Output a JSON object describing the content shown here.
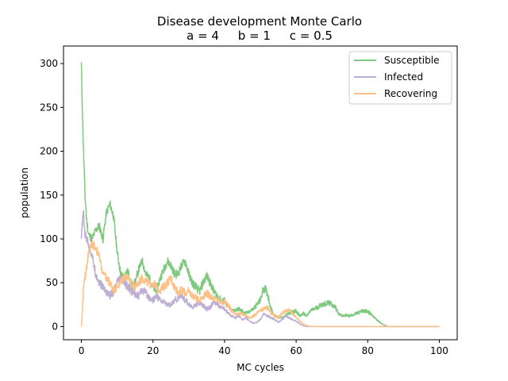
{
  "chart_data": {
    "type": "line",
    "title": "Disease development Monte Carlo",
    "subtitle": "a = 4     b = 1     c = 0.5",
    "xlabel": "MC cycles",
    "ylabel": "population",
    "xlim": [
      -5,
      105
    ],
    "ylim": [
      -15,
      320
    ],
    "xticks": [
      0,
      20,
      40,
      60,
      80,
      100
    ],
    "yticks": [
      0,
      50,
      100,
      150,
      200,
      250,
      300
    ],
    "grid": false,
    "legend_position": "top-right",
    "series": [
      {
        "name": "Susceptible",
        "color": "#7fc97f",
        "points": [
          [
            0,
            300
          ],
          [
            0.3,
            240
          ],
          [
            0.6,
            200
          ],
          [
            1,
            150
          ],
          [
            1.5,
            120
          ],
          [
            2,
            105
          ],
          [
            3,
            100
          ],
          [
            4,
            110
          ],
          [
            5,
            115
          ],
          [
            6,
            100
          ],
          [
            7,
            130
          ],
          [
            8,
            140
          ],
          [
            9,
            125
          ],
          [
            10,
            85
          ],
          [
            11,
            60
          ],
          [
            12,
            55
          ],
          [
            13,
            65
          ],
          [
            14,
            45
          ],
          [
            15,
            50
          ],
          [
            16,
            65
          ],
          [
            17,
            75
          ],
          [
            18,
            60
          ],
          [
            19,
            55
          ],
          [
            20,
            45
          ],
          [
            21,
            40
          ],
          [
            22,
            55
          ],
          [
            23,
            65
          ],
          [
            24,
            75
          ],
          [
            25,
            70
          ],
          [
            26,
            60
          ],
          [
            27,
            60
          ],
          [
            28,
            70
          ],
          [
            29,
            75
          ],
          [
            30,
            60
          ],
          [
            31,
            50
          ],
          [
            32,
            45
          ],
          [
            33,
            40
          ],
          [
            34,
            50
          ],
          [
            35,
            58
          ],
          [
            36,
            50
          ],
          [
            37,
            40
          ],
          [
            38,
            35
          ],
          [
            39,
            30
          ],
          [
            40,
            30
          ],
          [
            41,
            22
          ],
          [
            42,
            18
          ],
          [
            44,
            20
          ],
          [
            46,
            15
          ],
          [
            48,
            20
          ],
          [
            50,
            30
          ],
          [
            51,
            45
          ],
          [
            52,
            38
          ],
          [
            53,
            20
          ],
          [
            54,
            12
          ],
          [
            56,
            10
          ],
          [
            58,
            15
          ],
          [
            60,
            18
          ],
          [
            61,
            12
          ],
          [
            62,
            15
          ],
          [
            63,
            12
          ],
          [
            64,
            18
          ],
          [
            65,
            20
          ],
          [
            66,
            22
          ],
          [
            67,
            25
          ],
          [
            68,
            26
          ],
          [
            69,
            27
          ],
          [
            70,
            25
          ],
          [
            71,
            22
          ],
          [
            72,
            14
          ],
          [
            73,
            12
          ],
          [
            74,
            13
          ],
          [
            75,
            12
          ],
          [
            76,
            14
          ],
          [
            77,
            15
          ],
          [
            78,
            17
          ],
          [
            79,
            18
          ],
          [
            80,
            17
          ],
          [
            81,
            14
          ],
          [
            82,
            10
          ],
          [
            83,
            6
          ],
          [
            84,
            3
          ],
          [
            85,
            1
          ],
          [
            86,
            0
          ],
          [
            90,
            0
          ],
          [
            100,
            0
          ]
        ]
      },
      {
        "name": "Infected",
        "color": "#beaed4",
        "points": [
          [
            0,
            100
          ],
          [
            0.3,
            120
          ],
          [
            0.6,
            130
          ],
          [
            1,
            105
          ],
          [
            2,
            95
          ],
          [
            3,
            80
          ],
          [
            4,
            60
          ],
          [
            5,
            50
          ],
          [
            6,
            45
          ],
          [
            7,
            40
          ],
          [
            8,
            35
          ],
          [
            9,
            40
          ],
          [
            10,
            50
          ],
          [
            11,
            55
          ],
          [
            12,
            50
          ],
          [
            13,
            45
          ],
          [
            14,
            40
          ],
          [
            15,
            38
          ],
          [
            16,
            35
          ],
          [
            17,
            42
          ],
          [
            18,
            38
          ],
          [
            19,
            33
          ],
          [
            20,
            30
          ],
          [
            21,
            35
          ],
          [
            22,
            30
          ],
          [
            23,
            28
          ],
          [
            24,
            26
          ],
          [
            25,
            24
          ],
          [
            26,
            30
          ],
          [
            27,
            32
          ],
          [
            28,
            35
          ],
          [
            29,
            30
          ],
          [
            30,
            26
          ],
          [
            31,
            22
          ],
          [
            32,
            25
          ],
          [
            33,
            27
          ],
          [
            34,
            24
          ],
          [
            35,
            20
          ],
          [
            36,
            22
          ],
          [
            37,
            28
          ],
          [
            38,
            25
          ],
          [
            39,
            22
          ],
          [
            40,
            20
          ],
          [
            41,
            15
          ],
          [
            42,
            12
          ],
          [
            43,
            10
          ],
          [
            44,
            12
          ],
          [
            45,
            8
          ],
          [
            46,
            10
          ],
          [
            47,
            6
          ],
          [
            48,
            4
          ],
          [
            49,
            5
          ],
          [
            50,
            8
          ],
          [
            51,
            15
          ],
          [
            52,
            12
          ],
          [
            53,
            10
          ],
          [
            54,
            8
          ],
          [
            55,
            5
          ],
          [
            56,
            8
          ],
          [
            57,
            12
          ],
          [
            58,
            10
          ],
          [
            59,
            8
          ],
          [
            60,
            6
          ],
          [
            61,
            3
          ],
          [
            62,
            1
          ],
          [
            63,
            0
          ],
          [
            70,
            0
          ],
          [
            100,
            0
          ]
        ]
      },
      {
        "name": "Recovering",
        "color": "#fdc086",
        "points": [
          [
            0,
            0
          ],
          [
            0.3,
            20
          ],
          [
            0.6,
            45
          ],
          [
            1,
            55
          ],
          [
            1.5,
            70
          ],
          [
            2,
            85
          ],
          [
            3,
            95
          ],
          [
            4,
            90
          ],
          [
            5,
            80
          ],
          [
            6,
            60
          ],
          [
            7,
            55
          ],
          [
            8,
            50
          ],
          [
            9,
            42
          ],
          [
            10,
            45
          ],
          [
            11,
            50
          ],
          [
            12,
            58
          ],
          [
            13,
            55
          ],
          [
            14,
            50
          ],
          [
            15,
            45
          ],
          [
            16,
            50
          ],
          [
            17,
            55
          ],
          [
            18,
            52
          ],
          [
            19,
            48
          ],
          [
            20,
            50
          ],
          [
            21,
            45
          ],
          [
            22,
            42
          ],
          [
            23,
            45
          ],
          [
            24,
            50
          ],
          [
            25,
            55
          ],
          [
            26,
            45
          ],
          [
            27,
            40
          ],
          [
            28,
            42
          ],
          [
            29,
            38
          ],
          [
            30,
            40
          ],
          [
            31,
            35
          ],
          [
            32,
            33
          ],
          [
            33,
            30
          ],
          [
            34,
            35
          ],
          [
            35,
            38
          ],
          [
            36,
            35
          ],
          [
            37,
            32
          ],
          [
            38,
            30
          ],
          [
            39,
            28
          ],
          [
            40,
            28
          ],
          [
            41,
            25
          ],
          [
            42,
            18
          ],
          [
            43,
            14
          ],
          [
            44,
            15
          ],
          [
            45,
            14
          ],
          [
            46,
            12
          ],
          [
            47,
            10
          ],
          [
            48,
            12
          ],
          [
            49,
            15
          ],
          [
            50,
            18
          ],
          [
            51,
            20
          ],
          [
            52,
            22
          ],
          [
            53,
            15
          ],
          [
            54,
            12
          ],
          [
            55,
            10
          ],
          [
            56,
            15
          ],
          [
            57,
            18
          ],
          [
            58,
            20
          ],
          [
            59,
            15
          ],
          [
            60,
            10
          ],
          [
            61,
            6
          ],
          [
            62,
            3
          ],
          [
            63,
            1
          ],
          [
            64,
            0
          ],
          [
            70,
            0
          ],
          [
            100,
            0
          ]
        ]
      }
    ]
  }
}
